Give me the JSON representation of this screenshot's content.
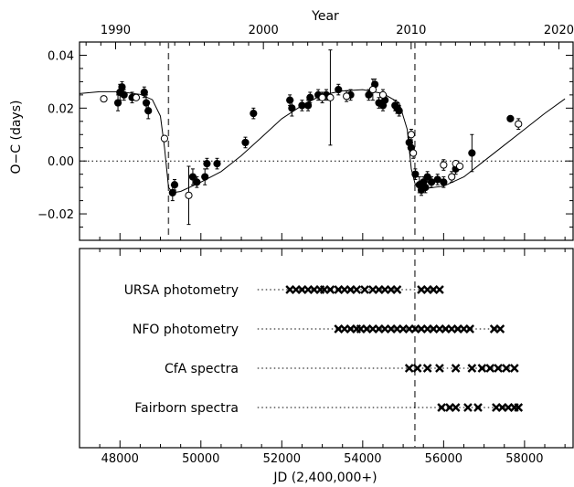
{
  "chart_data": [
    {
      "type": "scatter",
      "top_axis_label": "Year",
      "top_ticks": [
        "1990",
        "2000",
        "2010",
        "2020"
      ],
      "top_tick_jd": [
        47892,
        51545,
        55197,
        58849
      ],
      "ylabel": "O−C (days)",
      "ylim": [
        -0.03,
        0.045
      ],
      "xlim": [
        47000,
        59200
      ],
      "y_ticks": [
        "−0.02",
        "0.00",
        "0.02",
        "0.04"
      ],
      "y_tick_values": [
        -0.02,
        0.0,
        0.02,
        0.04
      ],
      "zero_line": "dotted",
      "vertical_dashed_x": [
        49200,
        55290
      ],
      "model_curve": [
        [
          47000,
          0.0255
        ],
        [
          47500,
          0.0262
        ],
        [
          48000,
          0.0262
        ],
        [
          48500,
          0.0252
        ],
        [
          48800,
          0.0232
        ],
        [
          49000,
          0.017
        ],
        [
          49100,
          0.005
        ],
        [
          49200,
          -0.01
        ],
        [
          49300,
          -0.012
        ],
        [
          49500,
          -0.0115
        ],
        [
          50000,
          -0.008
        ],
        [
          50500,
          -0.004
        ],
        [
          51000,
          0.002
        ],
        [
          51500,
          0.009
        ],
        [
          52000,
          0.016
        ],
        [
          52500,
          0.021
        ],
        [
          53000,
          0.025
        ],
        [
          53500,
          0.0265
        ],
        [
          54000,
          0.027
        ],
        [
          54500,
          0.0255
        ],
        [
          54900,
          0.022
        ],
        [
          55100,
          0.012
        ],
        [
          55200,
          -0.003
        ],
        [
          55300,
          -0.009
        ],
        [
          55500,
          -0.0105
        ],
        [
          56000,
          -0.0095
        ],
        [
          56500,
          -0.006
        ],
        [
          57000,
          0.0
        ],
        [
          57500,
          0.006
        ],
        [
          58000,
          0.012
        ],
        [
          58500,
          0.018
        ],
        [
          59000,
          0.0235
        ]
      ],
      "series": [
        {
          "marker": "filled-circle",
          "points": [
            [
              47950,
              0.022,
              0.003
            ],
            [
              48000,
              0.026,
              0.003
            ],
            [
              48050,
              0.028,
              0.002
            ],
            [
              48100,
              0.025,
              0.002
            ],
            [
              48300,
              0.024,
              0.002
            ],
            [
              48600,
              0.026,
              0.002
            ],
            [
              48650,
              0.022,
              0.003
            ],
            [
              48700,
              0.019,
              0.003
            ],
            [
              49300,
              -0.012,
              0.003
            ],
            [
              49350,
              -0.009,
              0.002
            ],
            [
              49800,
              -0.006,
              0.003
            ],
            [
              49900,
              -0.008,
              0.002
            ],
            [
              50100,
              -0.006,
              0.003
            ],
            [
              50150,
              -0.001,
              0.002
            ],
            [
              50400,
              -0.001,
              0.002
            ],
            [
              51100,
              0.007,
              0.002
            ],
            [
              51300,
              0.018,
              0.002
            ],
            [
              52200,
              0.023,
              0.002
            ],
            [
              52250,
              0.02,
              0.003
            ],
            [
              52500,
              0.021,
              0.002
            ],
            [
              52650,
              0.021,
              0.002
            ],
            [
              52700,
              0.024,
              0.002
            ],
            [
              52900,
              0.025,
              0.002
            ],
            [
              53100,
              0.025,
              0.002
            ],
            [
              53400,
              0.027,
              0.002
            ],
            [
              53700,
              0.025,
              0.002
            ],
            [
              54150,
              0.025,
              0.002
            ],
            [
              54300,
              0.029,
              0.002
            ],
            [
              54400,
              0.022,
              0.002
            ],
            [
              54500,
              0.021,
              0.002
            ],
            [
              54550,
              0.023,
              0.002
            ],
            [
              54800,
              0.021,
              0.002
            ],
            [
              54850,
              0.02,
              0.002
            ],
            [
              54900,
              0.019,
              0.002
            ],
            [
              55150,
              0.007,
              0.002
            ],
            [
              55200,
              0.005,
              0.002
            ],
            [
              55300,
              -0.005,
              0.002
            ],
            [
              55400,
              -0.009,
              0.003
            ],
            [
              55450,
              -0.011,
              0.002
            ],
            [
              55500,
              -0.008,
              0.002
            ],
            [
              55550,
              -0.01,
              0.002
            ],
            [
              55600,
              -0.006,
              0.002
            ],
            [
              55700,
              -0.008,
              0.002
            ],
            [
              55850,
              -0.007,
              0.002
            ],
            [
              56000,
              -0.008,
              0.002
            ],
            [
              56300,
              -0.003,
              0.002
            ],
            [
              56700,
              0.003,
              0.007
            ],
            [
              57650,
              0.016,
              0.001
            ]
          ]
        },
        {
          "marker": "open-circle",
          "points": [
            [
              47600,
              0.0235,
              0.001
            ],
            [
              48400,
              0.024,
              0.001
            ],
            [
              49100,
              0.0085,
              0.001
            ],
            [
              49700,
              -0.013,
              0.011
            ],
            [
              53000,
              0.024,
              0.002
            ],
            [
              53200,
              0.024,
              0.018
            ],
            [
              53600,
              0.0245,
              0.002
            ],
            [
              54250,
              0.027,
              0.004
            ],
            [
              54500,
              0.025,
              0.002
            ],
            [
              55200,
              0.01,
              0.002
            ],
            [
              55250,
              0.003,
              0.002
            ],
            [
              56000,
              -0.0015,
              0.002
            ],
            [
              56200,
              -0.006,
              0.002
            ],
            [
              56300,
              -0.001,
              0.001
            ],
            [
              56400,
              -0.002,
              0.001
            ],
            [
              57850,
              0.014,
              0.002
            ]
          ]
        }
      ]
    },
    {
      "type": "scatter",
      "xlabel": "JD (2,400,000+)",
      "x_ticks": [
        "48000",
        "50000",
        "52000",
        "54000",
        "56000",
        "58000"
      ],
      "x_tick_values": [
        48000,
        50000,
        52000,
        54000,
        56000,
        58000
      ],
      "xlim": [
        47000,
        59200
      ],
      "vertical_dashed_x": [
        55290
      ],
      "rows": [
        {
          "label": "URSA photometry",
          "dotted_from": 51400,
          "dotted_to": 55950,
          "obs": [
            52200,
            52350,
            52500,
            52650,
            52800,
            52950,
            53050,
            53200,
            53400,
            53550,
            53700,
            53850,
            54050,
            54250,
            54400,
            54550,
            54700,
            54850,
            55450,
            55600,
            55750,
            55900
          ]
        },
        {
          "label": "NFO photometry",
          "dotted_from": 51400,
          "dotted_to": 57450,
          "obs": [
            53400,
            53550,
            53700,
            53850,
            53950,
            54100,
            54250,
            54400,
            54550,
            54700,
            54850,
            55000,
            55150,
            55300,
            55450,
            55600,
            55750,
            55900,
            56050,
            56200,
            56350,
            56500,
            56650,
            57250,
            57400
          ]
        },
        {
          "label": "CfA spectra",
          "dotted_from": 51400,
          "dotted_to": 57800,
          "obs": [
            55150,
            55350,
            55600,
            55900,
            56300,
            56700,
            56950,
            57150,
            57350,
            57550,
            57750
          ]
        },
        {
          "label": "Fairborn spectra",
          "dotted_from": 51400,
          "dotted_to": 57900,
          "obs": [
            55950,
            56150,
            56300,
            56600,
            56850,
            57300,
            57450,
            57600,
            57750,
            57850
          ]
        }
      ]
    }
  ]
}
